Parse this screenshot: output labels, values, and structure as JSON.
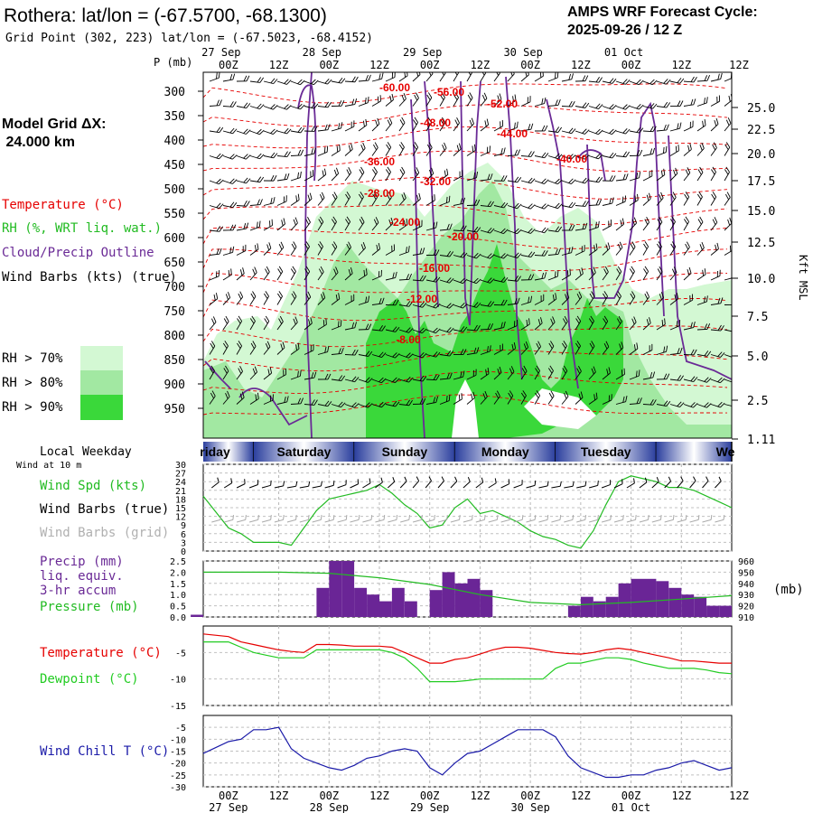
{
  "header": {
    "title": "Rothera:  lat/lon = (-67.5700, -68.1300)",
    "grid_point": "Grid Point (302, 223) lat/lon = (-67.5023, -68.4152)",
    "cycle_label": "AMPS WRF Forecast Cycle:",
    "cycle_value": "2025-09-26 / 12  Z",
    "model_grid_label": "Model Grid ΔX:",
    "model_grid_value": " 24.000 km"
  },
  "colors": {
    "temperature": "#e60000",
    "rh": "#22bb22",
    "cloud": "#6a2a96",
    "dewpoint": "#22cc22",
    "windchill": "#1a1aa8",
    "pressure": "#22bb22",
    "precip_bar": "#6a2596",
    "rh70": "#d3f8d3",
    "rh80": "#a2e8a2",
    "rh90": "#3ad83a"
  },
  "time_axis": {
    "hours": [
      0,
      12,
      24,
      36,
      48,
      60,
      72,
      84,
      96,
      108,
      120
    ],
    "top_ticks": [
      "00Z",
      "12Z",
      "00Z",
      "12Z",
      "00Z",
      "12Z",
      "00Z",
      "12Z",
      "00Z",
      "12Z"
    ],
    "top_dates": [
      "27 Sep",
      "28 Sep",
      "29 Sep",
      "30 Sep",
      "01 Oct"
    ],
    "bottom_ticks": [
      "00Z",
      "12Z",
      "00Z",
      "12Z",
      "00Z",
      "12Z",
      "00Z",
      "12Z",
      "00Z",
      "12Z"
    ],
    "bottom_dates": [
      "27 Sep",
      "28 Sep",
      "29 Sep",
      "30 Sep",
      "01 Oct"
    ],
    "weekdays": [
      "riday",
      "Saturday",
      "Sunday",
      "Monday",
      "Tuesday",
      "We"
    ],
    "local_weekday_label": "Local Weekday"
  },
  "cross_section": {
    "p_label": "P (mb)",
    "right_label": "Kft MSL",
    "pressure_ticks": [
      "300",
      "350",
      "400",
      "450",
      "500",
      "550",
      "600",
      "650",
      "700",
      "750",
      "800",
      "850",
      "900",
      "950"
    ],
    "height_ticks": [
      "25.0",
      "22.5",
      "20.0",
      "17.5",
      "15.0",
      "12.5",
      "10.0",
      "7.5",
      "5.0",
      "2.5",
      "1.11"
    ],
    "temp_labels": [
      "-60.00",
      "-56.00",
      "-52.00",
      "-48.00",
      "-44.00",
      "-40.00",
      "-36.00",
      "-32.00",
      "-28.00",
      "-24.00",
      "-20.00",
      "-16.00",
      "-12.00",
      "-8.00"
    ],
    "legend": {
      "temperature": "Temperature (°C)",
      "rh": "RH (%, WRT liq. wat.)",
      "cloud": "Cloud/Precip Outline",
      "wind": "Wind Barbs (kts) (true)",
      "rh70": "RH > 70%",
      "rh80": "RH > 80%",
      "rh90": "RH > 90%"
    }
  },
  "chart_data": [
    {
      "type": "line",
      "title": "Wind at 10 m",
      "x": [
        -6,
        0,
        3,
        6,
        9,
        12,
        15,
        18,
        21,
        24,
        27,
        30,
        33,
        36,
        39,
        42,
        45,
        48,
        51,
        54,
        57,
        60,
        63,
        66,
        69,
        72,
        75,
        78,
        81,
        84,
        87,
        90,
        93,
        96,
        99,
        102,
        105,
        108,
        111,
        114,
        117,
        120
      ],
      "series": [
        {
          "name": "Wind Spd (kts)",
          "values": [
            19,
            8,
            6,
            3,
            3,
            3,
            2,
            8,
            14,
            18,
            19,
            20,
            21,
            23,
            20,
            16,
            13,
            8,
            9,
            15,
            18,
            13,
            14,
            12,
            10,
            7,
            5,
            4,
            2,
            1,
            7,
            16,
            24,
            26,
            25,
            24,
            22,
            22,
            21,
            19,
            17,
            15
          ]
        }
      ],
      "labels": [
        "Wind Spd (kts)",
        "Wind Barbs (true)",
        "Wind Barbs (grid)"
      ],
      "yticks": [
        "30",
        "27",
        "24",
        "21",
        "18",
        "15",
        "12",
        "9",
        "6",
        "3",
        "0"
      ],
      "ylim": [
        0,
        30
      ]
    },
    {
      "type": "bar",
      "x": [
        -6,
        24,
        27,
        30,
        33,
        36,
        39,
        42,
        45,
        48,
        51,
        54,
        57,
        60,
        63,
        84,
        87,
        90,
        93,
        96,
        99,
        102,
        105,
        108,
        111,
        114,
        117,
        120
      ],
      "values": [
        0.1,
        1.3,
        2.5,
        2.5,
        1.3,
        1.0,
        0.7,
        1.3,
        0.7,
        0,
        1.2,
        2.0,
        1.5,
        1.7,
        1.2,
        0.5,
        0.9,
        0.7,
        0.9,
        1.5,
        1.7,
        1.7,
        1.6,
        1.3,
        1.0,
        0.9,
        0.5,
        0.5
      ],
      "series_line": {
        "name": "Pressure (mb)",
        "x": [
          -6,
          0,
          12,
          24,
          36,
          48,
          60,
          72,
          84,
          96,
          108,
          120
        ],
        "values": [
          950,
          950,
          950,
          949,
          945,
          939,
          930,
          923,
          921,
          923,
          926,
          929
        ]
      },
      "labels": [
        "Precip (mm)",
        "liq. equiv.",
        "3-hr accum",
        "Pressure (mb)"
      ],
      "right_label": "(mb)",
      "yticks": [
        "2.5",
        "2.0",
        "1.5",
        "1.0",
        "0.5",
        "0.0"
      ],
      "right_ticks": [
        "960",
        "950",
        "940",
        "930",
        "920",
        "910"
      ],
      "ylim": [
        0,
        2.5
      ],
      "y2lim": [
        910,
        960
      ]
    },
    {
      "type": "line",
      "x": [
        -6,
        0,
        3,
        6,
        9,
        12,
        15,
        18,
        21,
        24,
        27,
        30,
        33,
        36,
        39,
        42,
        45,
        48,
        51,
        54,
        57,
        60,
        63,
        66,
        69,
        72,
        75,
        78,
        81,
        84,
        87,
        90,
        93,
        96,
        99,
        102,
        105,
        108,
        111,
        114,
        117,
        120
      ],
      "series": [
        {
          "name": "Temperature (°C)",
          "values": [
            -1.5,
            -2,
            -3,
            -3.5,
            -4,
            -4.5,
            -4.8,
            -5,
            -3.5,
            -3.5,
            -3.6,
            -3.8,
            -3.8,
            -3.8,
            -4,
            -5,
            -6,
            -7,
            -7,
            -6.3,
            -6,
            -5.3,
            -4.5,
            -4,
            -4,
            -4.2,
            -4.6,
            -5,
            -5.2,
            -5.3,
            -5,
            -4.5,
            -4.2,
            -4.5,
            -5,
            -5.5,
            -6,
            -6.6,
            -6.6,
            -6.8,
            -7,
            -7
          ]
        },
        {
          "name": "Dewpoint (°C)",
          "values": [
            -3,
            -3,
            -4,
            -5,
            -5.5,
            -6,
            -6,
            -6,
            -4.5,
            -4.5,
            -4.5,
            -4.5,
            -4.5,
            -4.5,
            -5,
            -6,
            -8,
            -10.5,
            -10.5,
            -10.5,
            -10.3,
            -10,
            -10,
            -10,
            -10,
            -10,
            -10,
            -8,
            -7,
            -7,
            -6.5,
            -6,
            -6,
            -6.3,
            -7,
            -7.5,
            -8,
            -8,
            -8,
            -8.3,
            -8.8,
            -9
          ]
        }
      ],
      "yticks": [
        "-5",
        "-10",
        "-15"
      ],
      "ylim": [
        -15,
        0
      ]
    },
    {
      "type": "line",
      "x": [
        -6,
        0,
        3,
        6,
        9,
        12,
        15,
        18,
        21,
        24,
        27,
        30,
        33,
        36,
        39,
        42,
        45,
        48,
        51,
        54,
        57,
        60,
        63,
        66,
        69,
        72,
        75,
        78,
        81,
        84,
        87,
        90,
        93,
        96,
        99,
        102,
        105,
        108,
        111,
        114,
        117,
        120
      ],
      "series": [
        {
          "name": "Wind Chill T (°C)",
          "values": [
            -16,
            -11,
            -10,
            -6,
            -6,
            -5,
            -14,
            -18,
            -20,
            -22,
            -23,
            -21,
            -18,
            -17,
            -15,
            -14,
            -15,
            -22,
            -25,
            -20,
            -16,
            -15,
            -12,
            -9,
            -6,
            -6,
            -6,
            -9,
            -17,
            -22,
            -24,
            -26,
            -26,
            -25,
            -25,
            -23,
            -22,
            -20,
            -19,
            -21,
            -23,
            -22
          ]
        }
      ],
      "yticks": [
        "-5",
        "-10",
        "-15",
        "-20",
        "-25",
        "-30"
      ],
      "ylim": [
        -30,
        0
      ]
    }
  ]
}
